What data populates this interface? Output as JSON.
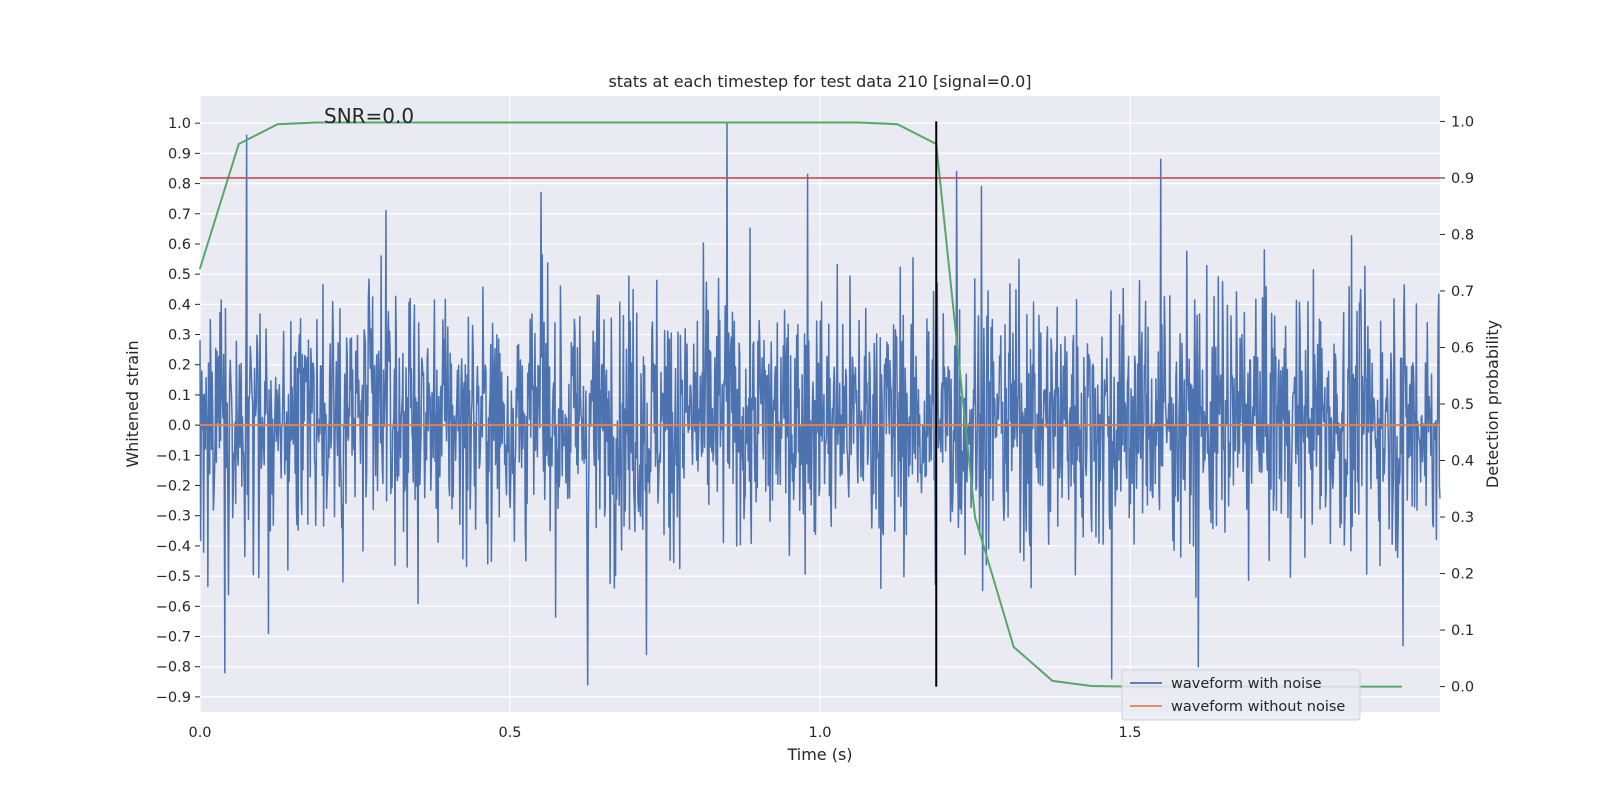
{
  "chart_data": {
    "type": "line",
    "title": "stats at each timestep for test data 210 [signal=0.0]",
    "xlabel": "Time (s)",
    "ylabel": "Whitened strain",
    "y2label": "Detection probability",
    "xlim": [
      0.0,
      2.0
    ],
    "ylim": [
      -0.95,
      1.09
    ],
    "y2lim": [
      -0.045,
      1.045
    ],
    "x_ticks": [
      0.0,
      0.5,
      1.0,
      1.5
    ],
    "x_tick_labels": [
      "0.0",
      "0.5",
      "1.0",
      "1.5"
    ],
    "y_ticks": [
      1.0,
      0.9,
      0.8,
      0.7,
      0.6,
      0.5,
      0.4,
      0.3,
      0.2,
      0.1,
      0.0,
      -0.1,
      -0.2,
      -0.3,
      -0.4,
      -0.5,
      -0.6,
      -0.7,
      -0.8,
      -0.9
    ],
    "y_tick_labels": [
      "1.0",
      "0.9",
      "0.8",
      "0.7",
      "0.6",
      "0.5",
      "0.4",
      "0.3",
      "0.2",
      "0.1",
      "0.0",
      "−0.1",
      "−0.2",
      "−0.3",
      "−0.4",
      "−0.5",
      "−0.6",
      "−0.7",
      "−0.8",
      "−0.9"
    ],
    "y2_ticks": [
      1.0,
      0.9,
      0.8,
      0.7,
      0.6,
      0.5,
      0.4,
      0.3,
      0.2,
      0.1,
      0.0
    ],
    "y2_tick_labels": [
      "1.0",
      "0.9",
      "0.8",
      "0.7",
      "0.6",
      "0.5",
      "0.4",
      "0.3",
      "0.2",
      "0.1",
      "0.0"
    ],
    "annotation": "SNR=0.0",
    "annotation_at": {
      "x": 0.2,
      "y": 1.0
    },
    "grid": true,
    "legend_position": "lower-right",
    "series": [
      {
        "name": "waveform with noise",
        "color": "#4c72b0",
        "axis": "left",
        "x_range": [
          0.0,
          2.0
        ],
        "n_points": 2048,
        "mean": 0.02,
        "std": 0.21,
        "min": -0.86,
        "max": 1.0,
        "notable_peaks": [
          {
            "x": 0.04,
            "y": -0.82
          },
          {
            "x": 0.075,
            "y": 0.96
          },
          {
            "x": 0.11,
            "y": -0.69
          },
          {
            "x": 0.3,
            "y": 0.71
          },
          {
            "x": 0.55,
            "y": 0.77
          },
          {
            "x": 0.625,
            "y": -0.86
          },
          {
            "x": 0.72,
            "y": -0.76
          },
          {
            "x": 0.85,
            "y": 1.0
          },
          {
            "x": 0.98,
            "y": 0.83
          },
          {
            "x": 1.22,
            "y": 0.84
          },
          {
            "x": 1.26,
            "y": 0.79
          },
          {
            "x": 1.47,
            "y": -0.84
          },
          {
            "x": 1.55,
            "y": 0.88
          },
          {
            "x": 1.61,
            "y": -0.8
          },
          {
            "x": 1.94,
            "y": -0.73
          }
        ]
      },
      {
        "name": "waveform without noise",
        "color": "#dd8452",
        "axis": "left",
        "x": [
          0.0,
          2.0
        ],
        "y": [
          0.0,
          0.0
        ]
      },
      {
        "name": "detection probability",
        "color": "#55a868",
        "axis": "right",
        "in_legend": false,
        "x": [
          0.0,
          0.0625,
          0.125,
          0.1875,
          0.25,
          0.3125,
          0.375,
          0.4375,
          0.5,
          0.5625,
          0.625,
          0.6875,
          0.75,
          0.8125,
          0.875,
          0.9375,
          1.0,
          1.0625,
          1.125,
          1.1875,
          1.25,
          1.3125,
          1.375,
          1.4375,
          1.5,
          1.5625,
          1.625,
          1.6875,
          1.75,
          1.8125,
          1.875,
          1.9375
        ],
        "y": [
          0.74,
          0.96,
          0.995,
          0.998,
          0.998,
          0.998,
          0.998,
          0.998,
          0.998,
          0.998,
          0.998,
          0.998,
          0.998,
          0.998,
          0.998,
          0.998,
          0.998,
          0.998,
          0.995,
          0.96,
          0.3,
          0.07,
          0.01,
          0.001,
          0.0,
          0.0,
          0.0,
          0.0,
          0.0,
          0.0,
          0.0,
          0.0
        ]
      }
    ],
    "reference_lines": [
      {
        "orientation": "horizontal",
        "axis": "right",
        "value": 0.9,
        "color": "#c44e52"
      },
      {
        "orientation": "vertical",
        "value": 1.1875,
        "y_from": 0.0,
        "y_to": 1.0,
        "axis": "right",
        "color": "#000000"
      }
    ]
  }
}
